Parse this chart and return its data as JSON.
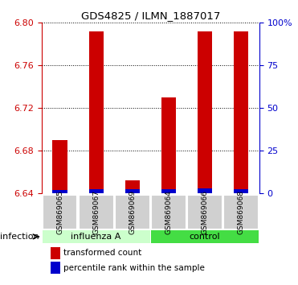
{
  "title": "GDS4825 / ILMN_1887017",
  "samples": [
    "GSM869065",
    "GSM869067",
    "GSM869069",
    "GSM869064",
    "GSM869066",
    "GSM869068"
  ],
  "red_values": [
    6.69,
    6.792,
    6.652,
    6.73,
    6.792,
    6.792
  ],
  "blue_values": [
    6.643,
    6.644,
    6.644,
    6.644,
    6.645,
    6.644
  ],
  "bar_bottom": 6.64,
  "ylim_left": [
    6.64,
    6.8
  ],
  "yticks_left": [
    6.64,
    6.68,
    6.72,
    6.76,
    6.8
  ],
  "ylim_right": [
    0,
    100
  ],
  "yticks_right": [
    0,
    25,
    50,
    75,
    100
  ],
  "yticklabels_right": [
    "0",
    "25",
    "50",
    "75",
    "100%"
  ],
  "red_color": "#cc0000",
  "blue_color": "#0000cc",
  "bar_width": 0.4,
  "sample_box_color": "#d0d0d0",
  "factor_label": "infection",
  "group_labels": [
    "influenza A",
    "control"
  ],
  "group_colors": [
    "#ccffcc",
    "#44dd44"
  ],
  "group_starts": [
    0,
    3
  ],
  "group_ends": [
    2,
    5
  ],
  "legend_red_label": "transformed count",
  "legend_blue_label": "percentile rank within the sample"
}
